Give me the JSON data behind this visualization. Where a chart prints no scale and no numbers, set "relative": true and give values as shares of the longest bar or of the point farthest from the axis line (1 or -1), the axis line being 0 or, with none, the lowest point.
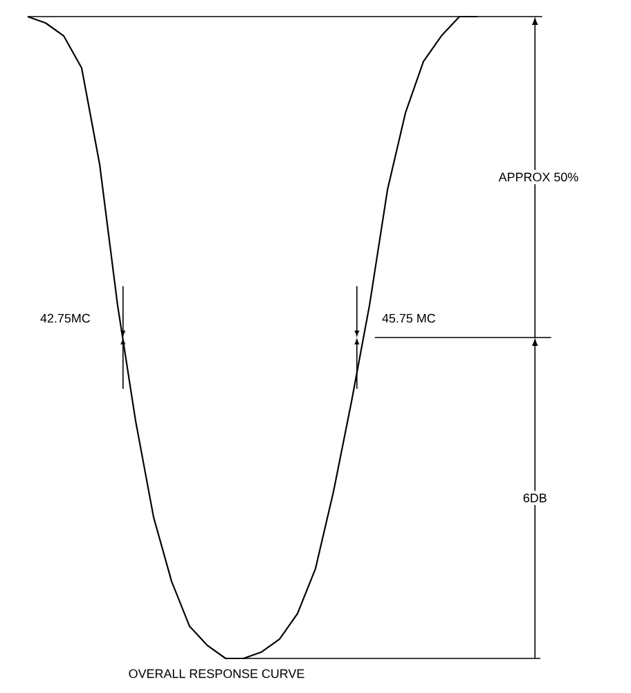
{
  "chart_data": {
    "type": "line",
    "title": "OVERALL RESPONSE CURVE",
    "relative": true,
    "categories": [
      null,
      null,
      null,
      null,
      null,
      null,
      null,
      null,
      null,
      null,
      null,
      null,
      null,
      null,
      null,
      null,
      null,
      null,
      null,
      null,
      null,
      null,
      null,
      null,
      null,
      null
    ],
    "series": [
      {
        "color": "#000000",
        "values": [
          1.0,
          0.99,
          0.97,
          0.92,
          0.77,
          0.55,
          0.37,
          0.22,
          0.12,
          0.05,
          0.02,
          0.0,
          0.0,
          0.01,
          0.03,
          0.07,
          0.14,
          0.26,
          0.4,
          0.55,
          0.73,
          0.85,
          0.93,
          0.97,
          1.0,
          1.0
        ]
      }
    ],
    "ref_lines": [
      {
        "axis": "y",
        "value": 1,
        "color": "#000000"
      },
      {
        "axis": "y",
        "value": 0.5,
        "color": "#000000"
      },
      {
        "axis": "y",
        "value": 0,
        "color": "#000000"
      }
    ],
    "annotations": [
      "42.75MC",
      "45.75 MC",
      "APPROX 50%",
      "6DB"
    ],
    "legend": false,
    "marker": "none",
    "line_style": "solid"
  }
}
